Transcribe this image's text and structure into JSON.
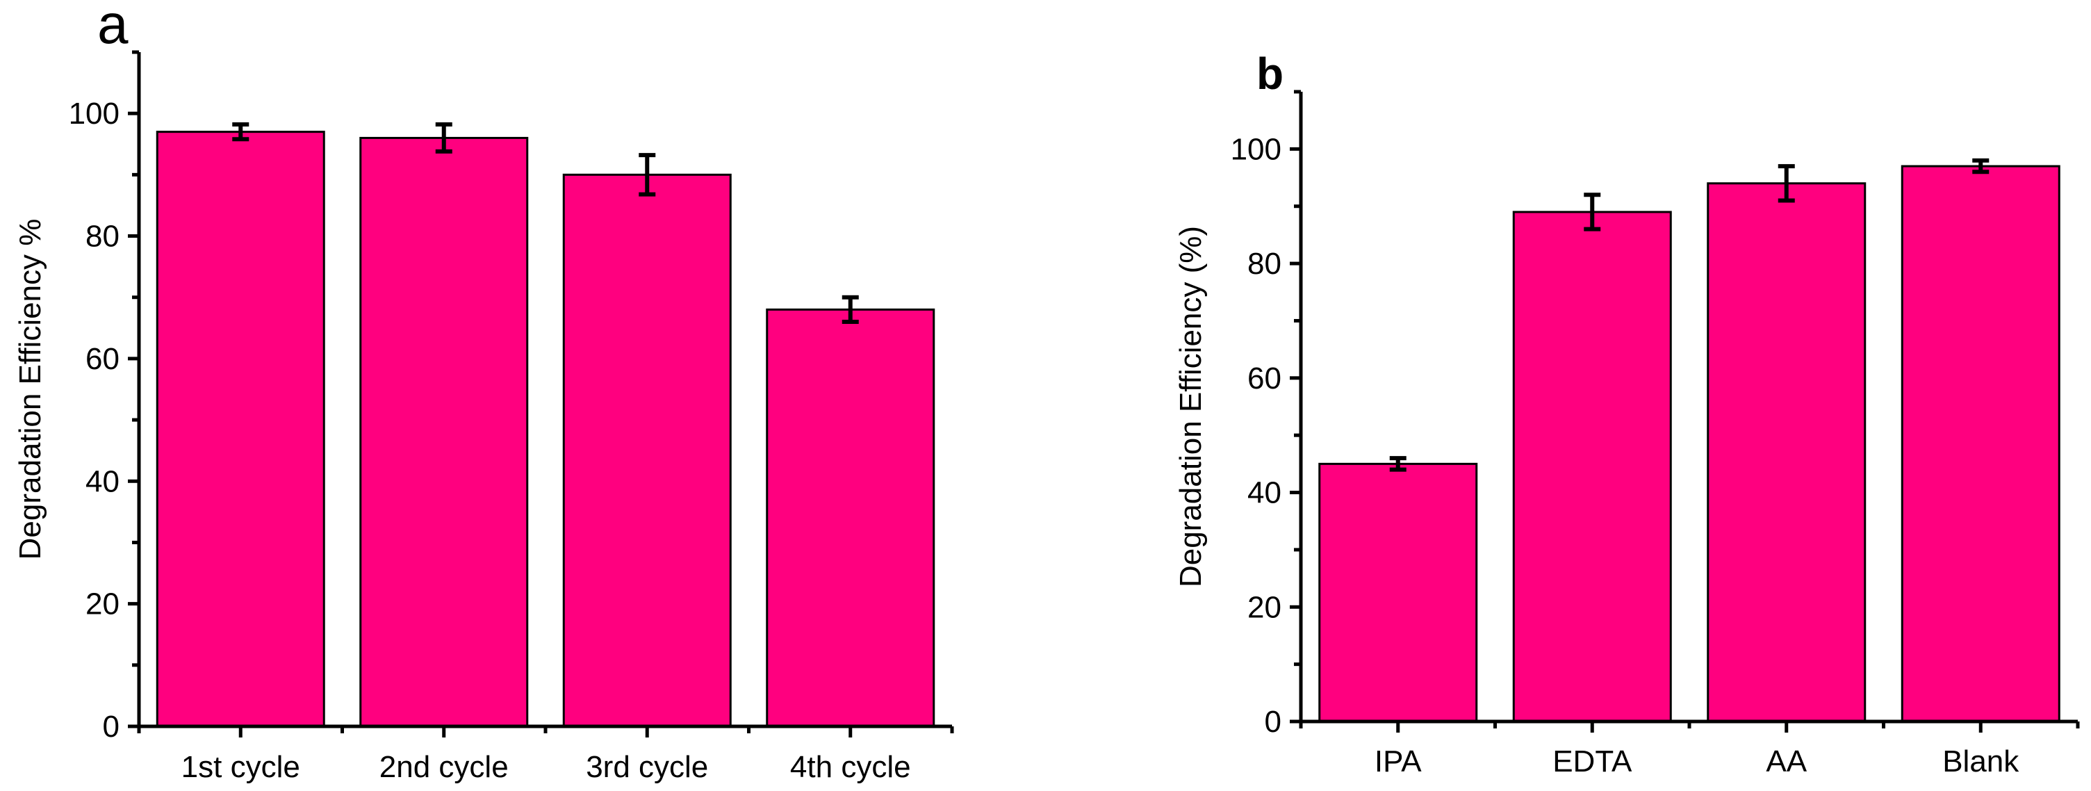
{
  "chart_data": [
    {
      "panel": "a",
      "type": "bar",
      "title": "",
      "xlabel": "",
      "ylabel": "Degradation Efficiency %",
      "categories": [
        "1st cycle",
        "2nd cycle",
        "3rd cycle",
        "4th cycle"
      ],
      "values": [
        97,
        96,
        90,
        68
      ],
      "errors": [
        1.2,
        2.2,
        3.2,
        2.0
      ],
      "ylim": [
        0,
        110
      ],
      "yticks": [
        0,
        20,
        40,
        60,
        80,
        100
      ],
      "bar_color": "#FF007F",
      "grid": false
    },
    {
      "panel": "b",
      "type": "bar",
      "title": "",
      "xlabel": "",
      "ylabel": "Degradation Efficiency (%)",
      "categories": [
        "IPA",
        "EDTA",
        "AA",
        "Blank"
      ],
      "values": [
        45,
        89,
        94,
        97
      ],
      "errors": [
        1.0,
        3.0,
        3.0,
        1.0
      ],
      "ylim": [
        0,
        110
      ],
      "yticks": [
        0,
        20,
        40,
        60,
        80,
        100
      ],
      "bar_color": "#FF007F",
      "grid": false
    }
  ]
}
